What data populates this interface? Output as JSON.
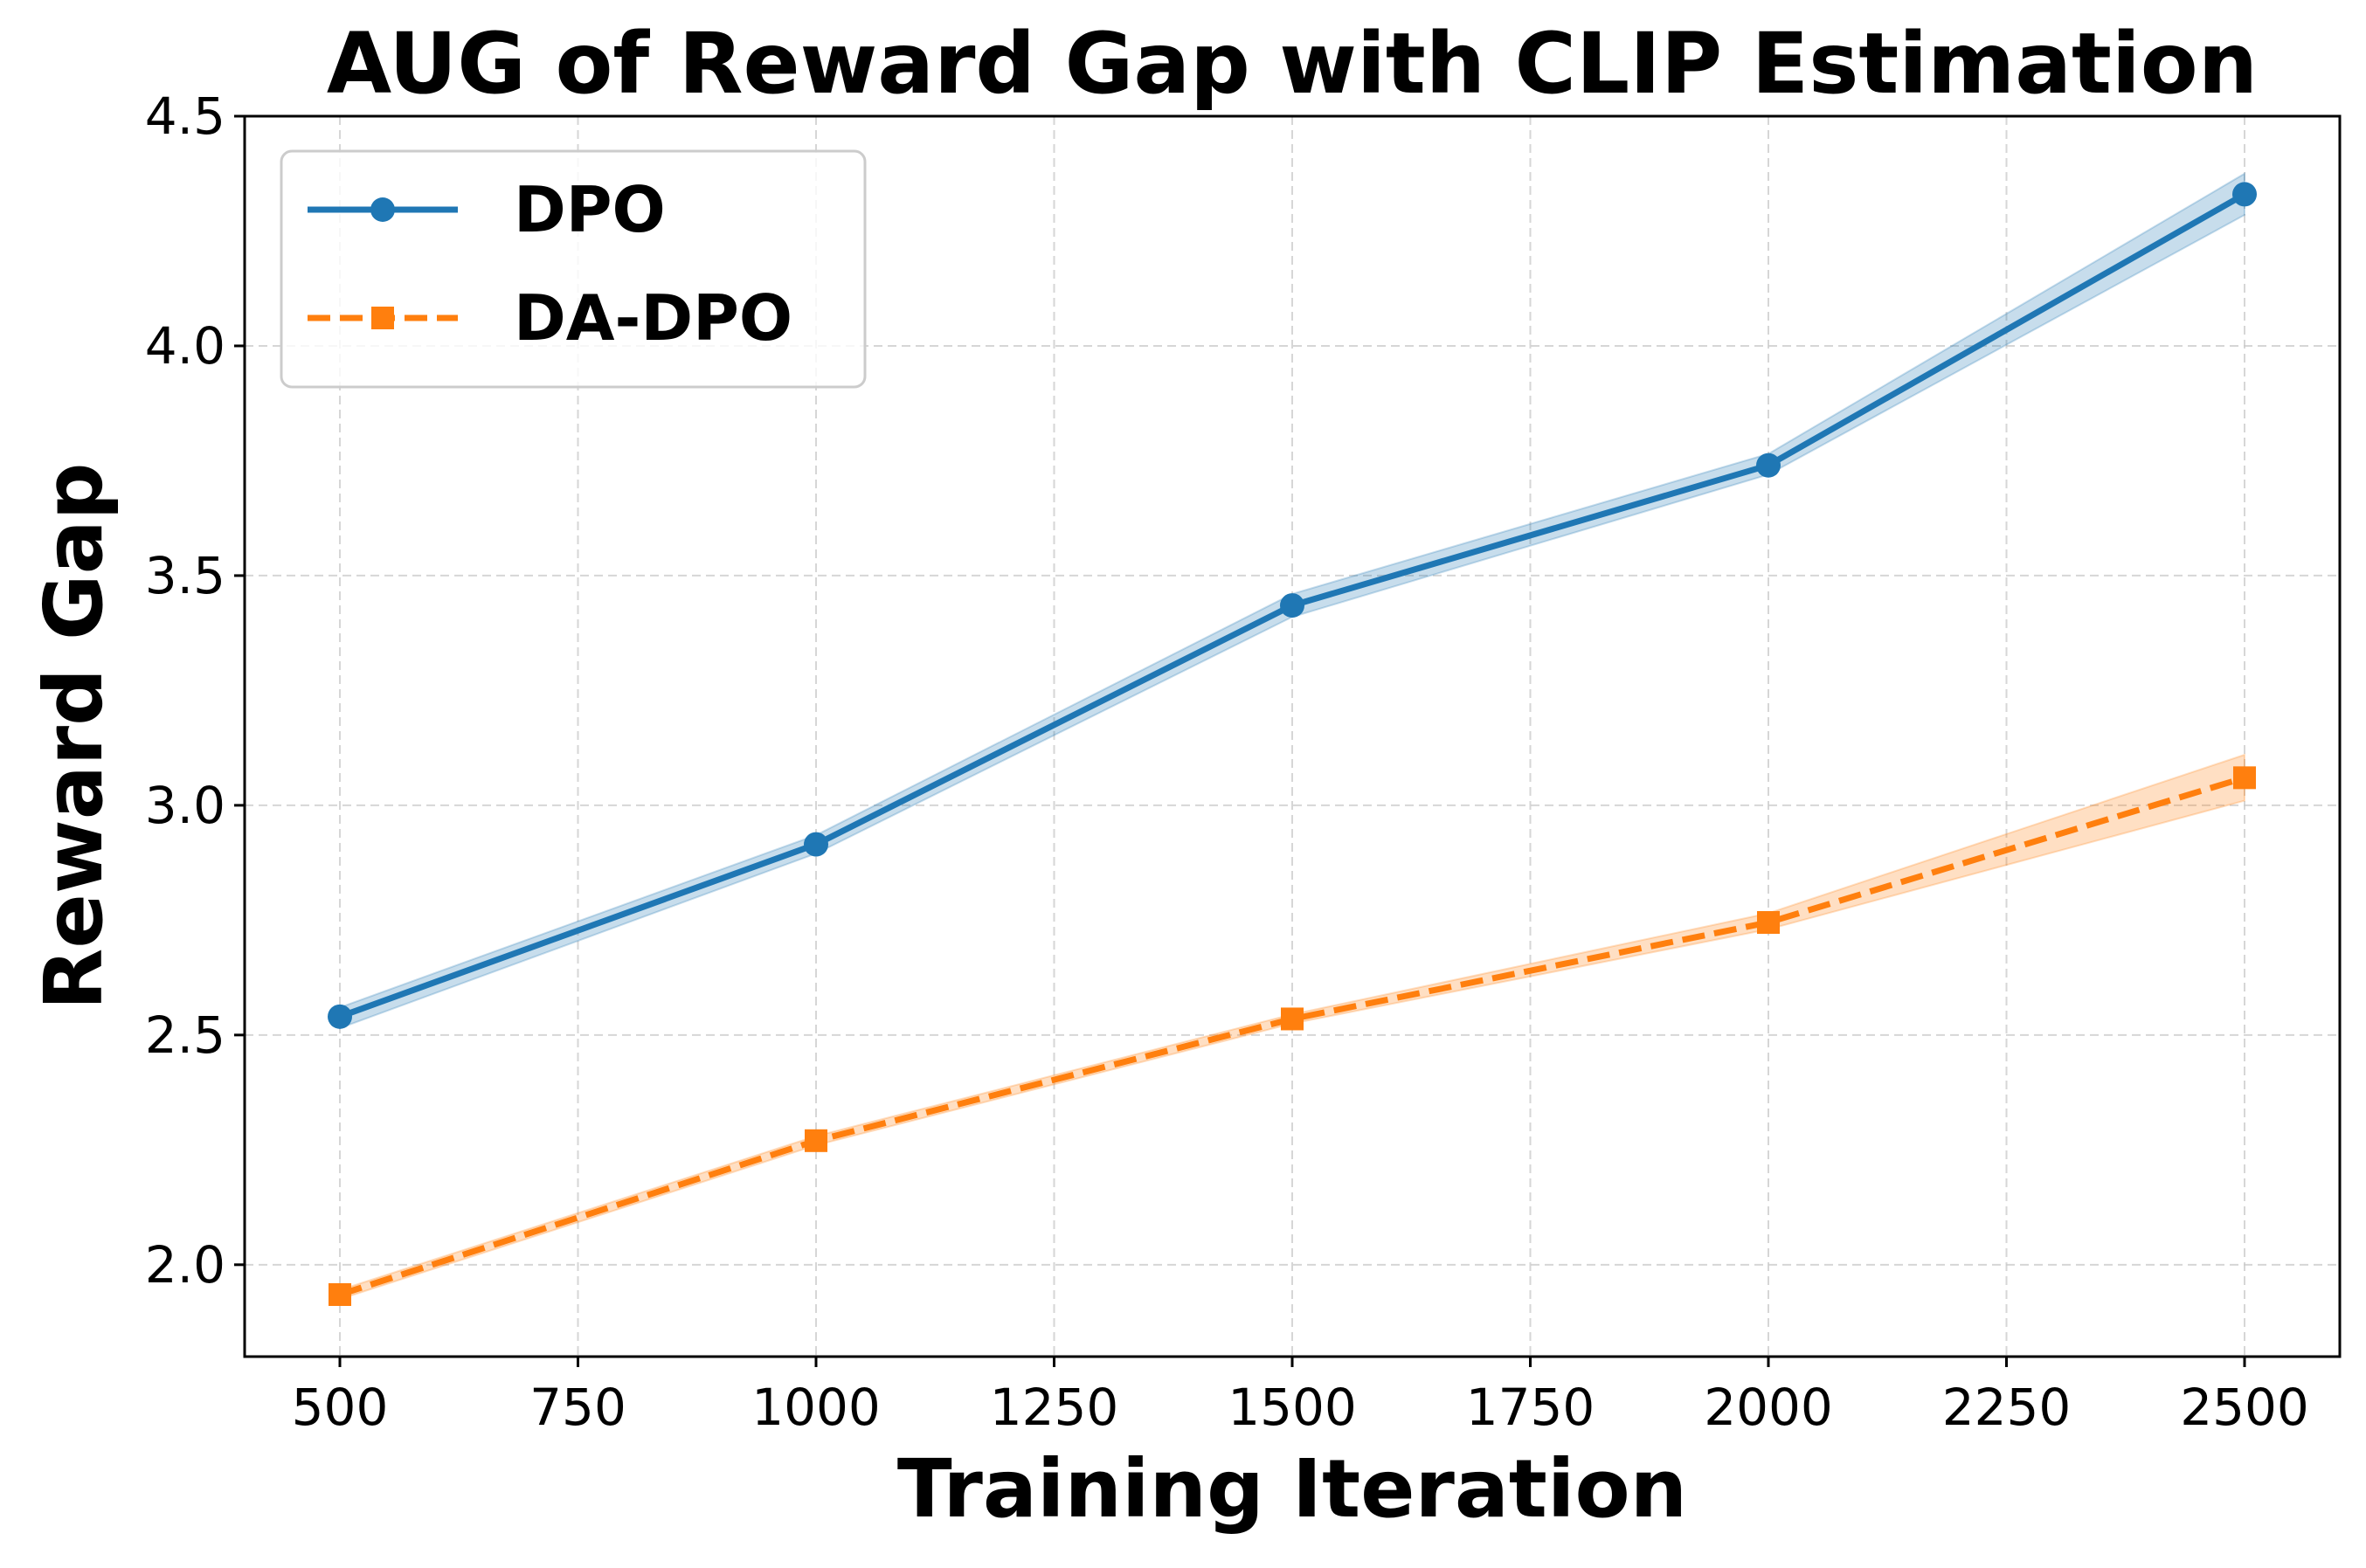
{
  "chart_data": {
    "type": "line",
    "title": "AUG of Reward Gap with CLIP Estimation",
    "xlabel": "Training Iteration",
    "ylabel": "Reward Gap",
    "x": [
      500,
      1000,
      1500,
      2000,
      2500
    ],
    "xlim": [
      400,
      2600
    ],
    "ylim": [
      1.8,
      4.5
    ],
    "xticks": [
      "500",
      "750",
      "1000",
      "1250",
      "1500",
      "1750",
      "2000",
      "2250",
      "2500"
    ],
    "yticks": [
      "2.0",
      "2.5",
      "3.0",
      "3.5",
      "4.0",
      "4.5"
    ],
    "grid": true,
    "legend_position": "top-left",
    "series": [
      {
        "name": "DPO",
        "values": [
          2.54,
          2.915,
          3.435,
          3.74,
          4.33
        ],
        "band_low": [
          2.515,
          2.895,
          3.41,
          3.72,
          4.285
        ],
        "band_high": [
          2.56,
          2.935,
          3.46,
          3.765,
          4.375
        ],
        "color": "#1f77b4",
        "line_style": "solid",
        "marker": "circle"
      },
      {
        "name": "DA-DPO",
        "values": [
          1.935,
          2.27,
          2.535,
          2.745,
          3.06
        ],
        "band_low": [
          1.925,
          2.26,
          2.525,
          2.73,
          3.01
        ],
        "band_high": [
          1.945,
          2.28,
          2.545,
          2.765,
          3.11
        ],
        "color": "#ff7f0e",
        "line_style": "dashed",
        "marker": "square"
      }
    ]
  }
}
